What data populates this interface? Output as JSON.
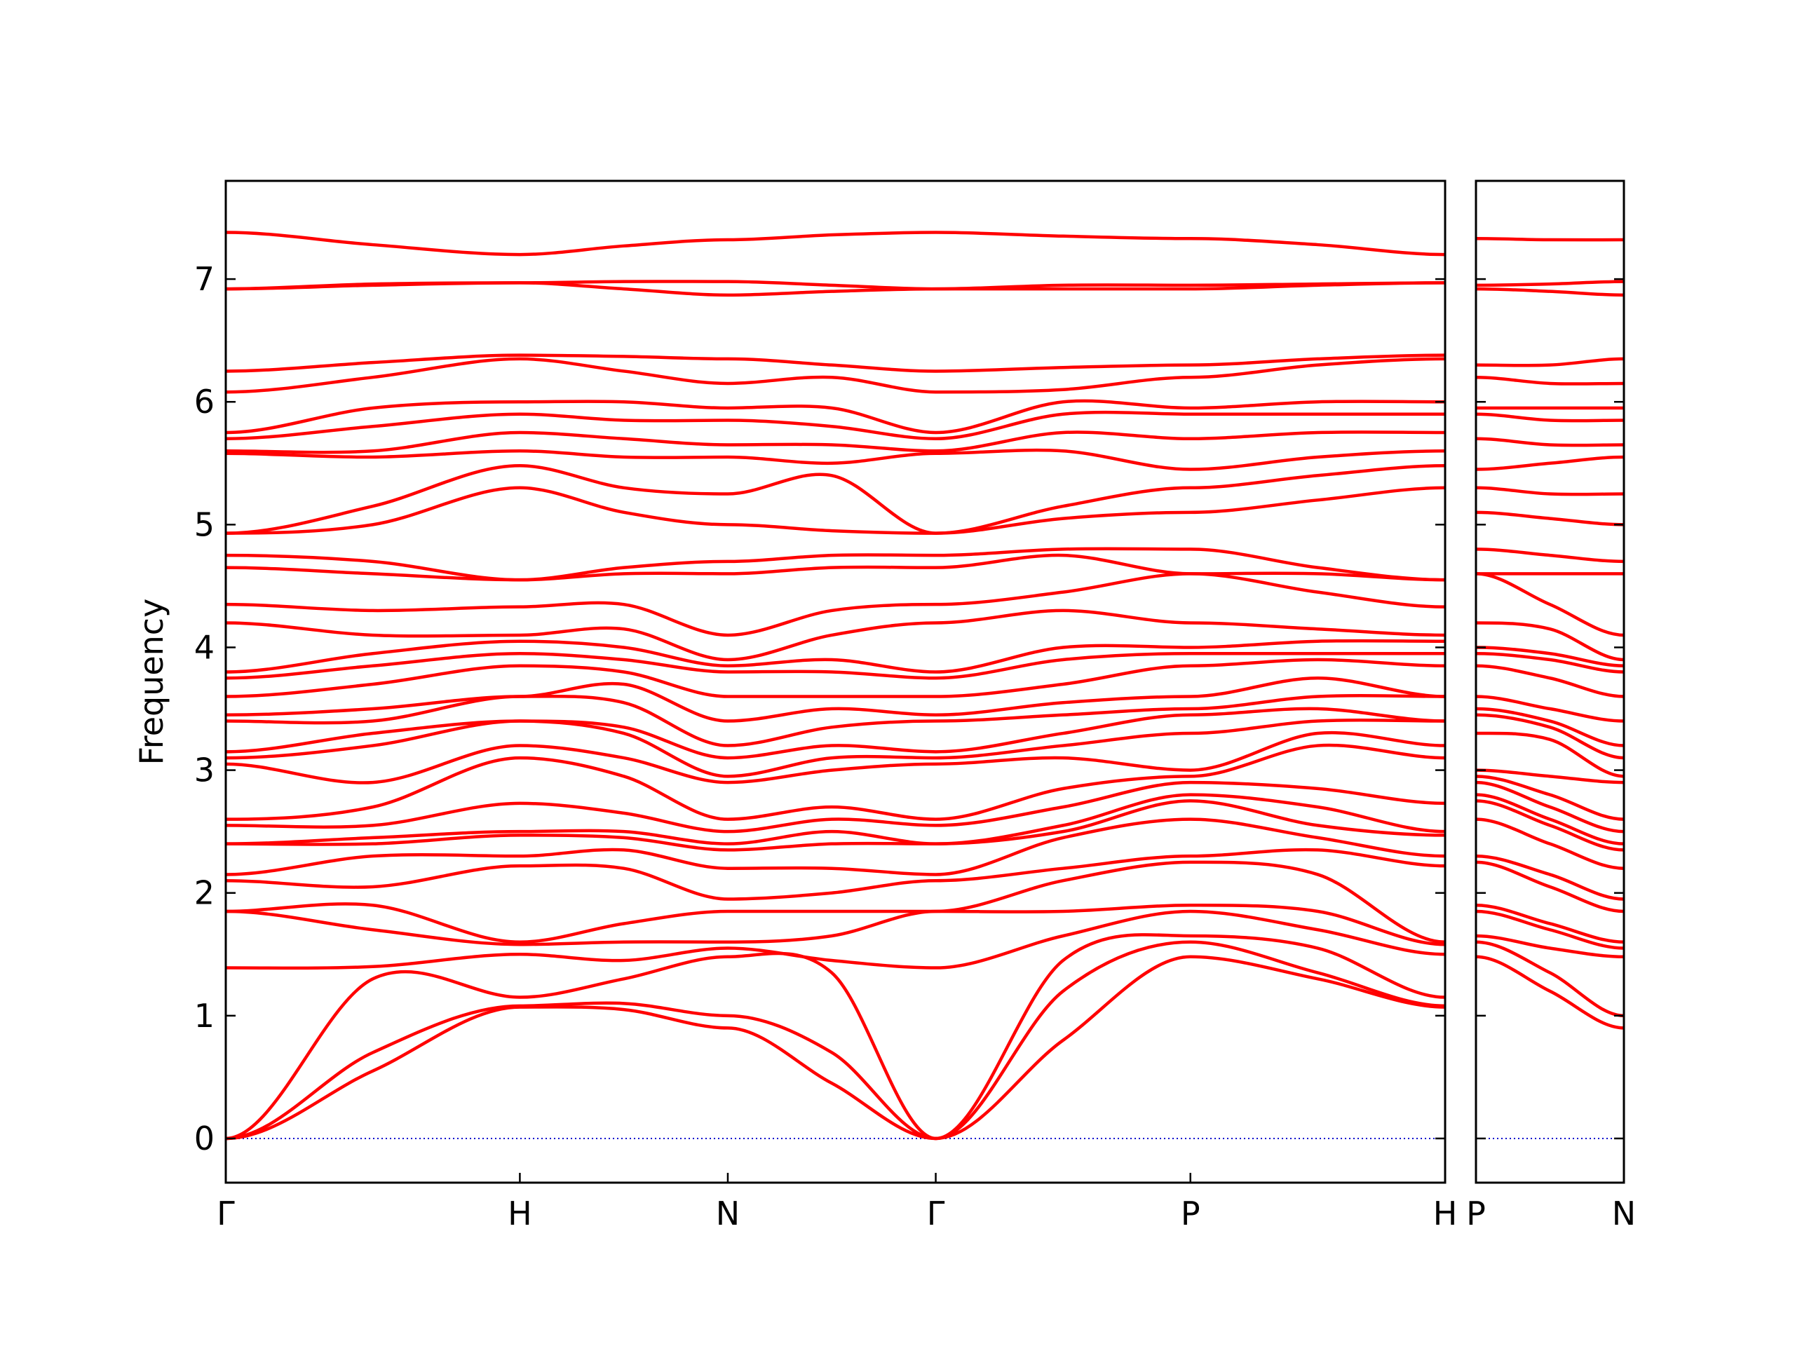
{
  "chart_data": [
    {
      "type": "line",
      "y_label": "Frequency",
      "color": "#ff0000",
      "hline": 0,
      "hline_color": "#0000cc",
      "xlim": [
        0,
        4.1463
      ],
      "ylim": [
        -0.36,
        7.8
      ],
      "yticks": [
        0,
        1,
        2,
        3,
        4,
        5,
        6,
        7
      ],
      "ytick_labels": true,
      "xticks": [
        {
          "value": 0,
          "label": "Γ"
        },
        {
          "value": 1,
          "label": "H"
        },
        {
          "value": 1.7071,
          "label": "N"
        },
        {
          "value": 2.4142,
          "label": "Γ"
        },
        {
          "value": 3.2802,
          "label": "P"
        },
        {
          "value": 4.1463,
          "label": "H"
        }
      ],
      "x": [
        0,
        0.5,
        1,
        1.3536,
        1.7071,
        2.0607,
        2.4142,
        2.8472,
        3.2802,
        3.7133,
        4.1463
      ],
      "series": [
        {
          "values": [
            0,
            0.55,
            1.07,
            1.05,
            0.9,
            0.45,
            0,
            0.8,
            1.48,
            1.3,
            1.07
          ]
        },
        {
          "values": [
            0,
            0.7,
            1.08,
            1.1,
            1.0,
            0.7,
            0,
            1.2,
            1.6,
            1.35,
            1.08
          ]
        },
        {
          "values": [
            0,
            1.3,
            1.15,
            1.3,
            1.48,
            1.35,
            0,
            1.45,
            1.65,
            1.55,
            1.15
          ]
        },
        {
          "values": [
            1.39,
            1.4,
            1.5,
            1.45,
            1.55,
            1.45,
            1.39,
            1.65,
            1.85,
            1.7,
            1.5
          ]
        },
        {
          "values": [
            1.85,
            1.7,
            1.58,
            1.6,
            1.6,
            1.65,
            1.85,
            1.85,
            1.9,
            1.85,
            1.58
          ]
        },
        {
          "values": [
            1.85,
            1.9,
            1.6,
            1.75,
            1.85,
            1.85,
            1.85,
            2.1,
            2.25,
            2.15,
            1.6
          ]
        },
        {
          "values": [
            2.1,
            2.05,
            2.22,
            2.2,
            1.95,
            2.0,
            2.1,
            2.2,
            2.3,
            2.35,
            2.22
          ]
        },
        {
          "values": [
            2.15,
            2.3,
            2.3,
            2.35,
            2.2,
            2.2,
            2.15,
            2.45,
            2.6,
            2.45,
            2.3
          ]
        },
        {
          "values": [
            2.4,
            2.4,
            2.47,
            2.45,
            2.35,
            2.4,
            2.4,
            2.5,
            2.75,
            2.55,
            2.47
          ]
        },
        {
          "values": [
            2.4,
            2.45,
            2.5,
            2.5,
            2.4,
            2.5,
            2.4,
            2.55,
            2.8,
            2.7,
            2.5
          ]
        },
        {
          "values": [
            2.55,
            2.55,
            2.73,
            2.65,
            2.5,
            2.6,
            2.55,
            2.7,
            2.9,
            2.85,
            2.73
          ]
        },
        {
          "values": [
            2.6,
            2.7,
            3.1,
            2.95,
            2.6,
            2.7,
            2.6,
            2.85,
            2.95,
            3.2,
            3.1
          ]
        },
        {
          "values": [
            3.05,
            2.9,
            3.2,
            3.1,
            2.9,
            3.0,
            3.05,
            3.1,
            3.0,
            3.3,
            3.2
          ]
        },
        {
          "values": [
            3.1,
            3.2,
            3.4,
            3.3,
            2.95,
            3.1,
            3.1,
            3.2,
            3.3,
            3.4,
            3.4
          ]
        },
        {
          "values": [
            3.15,
            3.3,
            3.4,
            3.35,
            3.1,
            3.2,
            3.15,
            3.3,
            3.45,
            3.5,
            3.4
          ]
        },
        {
          "values": [
            3.4,
            3.4,
            3.6,
            3.55,
            3.2,
            3.35,
            3.4,
            3.45,
            3.5,
            3.6,
            3.6
          ]
        },
        {
          "values": [
            3.45,
            3.5,
            3.6,
            3.7,
            3.4,
            3.5,
            3.45,
            3.55,
            3.6,
            3.75,
            3.6
          ]
        },
        {
          "values": [
            3.6,
            3.7,
            3.85,
            3.8,
            3.6,
            3.6,
            3.6,
            3.7,
            3.85,
            3.9,
            3.85
          ]
        },
        {
          "values": [
            3.75,
            3.85,
            3.95,
            3.9,
            3.8,
            3.8,
            3.75,
            3.9,
            3.95,
            3.95,
            3.95
          ]
        },
        {
          "values": [
            3.8,
            3.95,
            4.05,
            4.0,
            3.85,
            3.9,
            3.8,
            4.0,
            4.0,
            4.05,
            4.05
          ]
        },
        {
          "values": [
            4.2,
            4.1,
            4.1,
            4.15,
            3.9,
            4.1,
            4.2,
            4.3,
            4.2,
            4.15,
            4.1
          ]
        },
        {
          "values": [
            4.35,
            4.3,
            4.33,
            4.35,
            4.1,
            4.3,
            4.35,
            4.45,
            4.6,
            4.45,
            4.33
          ]
        },
        {
          "values": [
            4.65,
            4.6,
            4.55,
            4.6,
            4.6,
            4.65,
            4.65,
            4.75,
            4.6,
            4.6,
            4.55
          ]
        },
        {
          "values": [
            4.75,
            4.7,
            4.55,
            4.65,
            4.7,
            4.75,
            4.75,
            4.8,
            4.8,
            4.65,
            4.55
          ]
        },
        {
          "values": [
            4.93,
            5.0,
            5.3,
            5.1,
            5.0,
            4.95,
            4.93,
            5.05,
            5.1,
            5.2,
            5.3
          ]
        },
        {
          "values": [
            4.93,
            5.15,
            5.48,
            5.3,
            5.25,
            5.4,
            4.93,
            5.15,
            5.3,
            5.4,
            5.48
          ]
        },
        {
          "values": [
            5.58,
            5.55,
            5.6,
            5.55,
            5.55,
            5.5,
            5.58,
            5.6,
            5.45,
            5.55,
            5.6
          ]
        },
        {
          "values": [
            5.6,
            5.6,
            5.75,
            5.7,
            5.65,
            5.65,
            5.6,
            5.75,
            5.7,
            5.75,
            5.75
          ]
        },
        {
          "values": [
            5.7,
            5.8,
            5.9,
            5.85,
            5.85,
            5.8,
            5.7,
            5.9,
            5.9,
            5.9,
            5.9
          ]
        },
        {
          "values": [
            5.75,
            5.95,
            6.0,
            6.0,
            5.95,
            5.95,
            5.75,
            6.0,
            5.95,
            6.0,
            6.0
          ]
        },
        {
          "values": [
            6.08,
            6.2,
            6.35,
            6.25,
            6.15,
            6.2,
            6.08,
            6.1,
            6.2,
            6.3,
            6.35
          ]
        },
        {
          "values": [
            6.25,
            6.32,
            6.38,
            6.37,
            6.35,
            6.3,
            6.25,
            6.28,
            6.3,
            6.35,
            6.38
          ]
        },
        {
          "values": [
            6.92,
            6.95,
            6.97,
            6.92,
            6.87,
            6.9,
            6.92,
            6.92,
            6.92,
            6.95,
            6.97
          ]
        },
        {
          "values": [
            6.92,
            6.96,
            6.97,
            6.98,
            6.98,
            6.95,
            6.92,
            6.95,
            6.95,
            6.96,
            6.97
          ]
        },
        {
          "values": [
            7.38,
            7.28,
            7.2,
            7.27,
            7.32,
            7.36,
            7.38,
            7.35,
            7.33,
            7.28,
            7.2
          ]
        }
      ]
    },
    {
      "type": "line",
      "color": "#ff0000",
      "hline": 0,
      "hline_color": "#0000cc",
      "xlim": [
        0,
        0.5
      ],
      "ylim": [
        -0.36,
        7.8
      ],
      "yticks": [
        0,
        1,
        2,
        3,
        4,
        5,
        6,
        7
      ],
      "ytick_labels": false,
      "xticks": [
        {
          "value": 0,
          "label": "P"
        },
        {
          "value": 0.5,
          "label": "N"
        }
      ],
      "x": [
        0,
        0.25,
        0.5
      ],
      "series": [
        {
          "values": [
            1.48,
            1.2,
            0.9
          ]
        },
        {
          "values": [
            1.6,
            1.35,
            1.0
          ]
        },
        {
          "values": [
            1.65,
            1.55,
            1.48
          ]
        },
        {
          "values": [
            1.85,
            1.7,
            1.55
          ]
        },
        {
          "values": [
            1.9,
            1.75,
            1.6
          ]
        },
        {
          "values": [
            2.25,
            2.05,
            1.85
          ]
        },
        {
          "values": [
            2.3,
            2.15,
            1.95
          ]
        },
        {
          "values": [
            2.6,
            2.4,
            2.2
          ]
        },
        {
          "values": [
            2.75,
            2.55,
            2.35
          ]
        },
        {
          "values": [
            2.8,
            2.6,
            2.4
          ]
        },
        {
          "values": [
            2.9,
            2.7,
            2.5
          ]
        },
        {
          "values": [
            2.95,
            2.8,
            2.6
          ]
        },
        {
          "values": [
            3.0,
            2.95,
            2.9
          ]
        },
        {
          "values": [
            3.3,
            3.25,
            2.95
          ]
        },
        {
          "values": [
            3.45,
            3.35,
            3.1
          ]
        },
        {
          "values": [
            3.5,
            3.4,
            3.2
          ]
        },
        {
          "values": [
            3.6,
            3.5,
            3.4
          ]
        },
        {
          "values": [
            3.85,
            3.75,
            3.6
          ]
        },
        {
          "values": [
            3.95,
            3.9,
            3.8
          ]
        },
        {
          "values": [
            4.0,
            3.95,
            3.85
          ]
        },
        {
          "values": [
            4.2,
            4.15,
            3.9
          ]
        },
        {
          "values": [
            4.6,
            4.35,
            4.1
          ]
        },
        {
          "values": [
            4.6,
            4.6,
            4.6
          ]
        },
        {
          "values": [
            4.8,
            4.75,
            4.7
          ]
        },
        {
          "values": [
            5.1,
            5.05,
            5.0
          ]
        },
        {
          "values": [
            5.3,
            5.25,
            5.25
          ]
        },
        {
          "values": [
            5.45,
            5.5,
            5.55
          ]
        },
        {
          "values": [
            5.7,
            5.65,
            5.65
          ]
        },
        {
          "values": [
            5.9,
            5.85,
            5.85
          ]
        },
        {
          "values": [
            5.95,
            5.95,
            5.95
          ]
        },
        {
          "values": [
            6.2,
            6.15,
            6.15
          ]
        },
        {
          "values": [
            6.3,
            6.3,
            6.35
          ]
        },
        {
          "values": [
            6.92,
            6.9,
            6.87
          ]
        },
        {
          "values": [
            6.95,
            6.96,
            6.98
          ]
        },
        {
          "values": [
            7.33,
            7.32,
            7.32
          ]
        }
      ]
    }
  ]
}
